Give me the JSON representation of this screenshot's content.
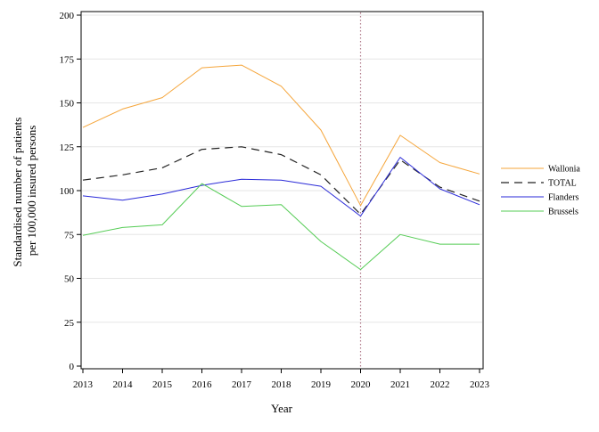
{
  "chart_data": {
    "type": "line",
    "xlabel": "Year",
    "ylabel": [
      "Standardised number of patients",
      "per 100,000 insured persons"
    ],
    "x": [
      2013,
      2014,
      2015,
      2016,
      2017,
      2018,
      2019,
      2020,
      2021,
      2022,
      2023
    ],
    "xlim": [
      2013,
      2023
    ],
    "ylim": [
      0,
      200
    ],
    "yticks": [
      0,
      25,
      50,
      75,
      100,
      125,
      150,
      175,
      200
    ],
    "grid": "horizontal",
    "reference_line_x": 2020,
    "legend_position": "right",
    "series": [
      {
        "name": "Wallonia",
        "color": "#f5a53a",
        "dash": "solid",
        "values": [
          136,
          146.5,
          153,
          170,
          171.5,
          159.5,
          134.5,
          91.5,
          131.5,
          116,
          109.5
        ]
      },
      {
        "name": "TOTAL",
        "color": "#222222",
        "dash": "dashed",
        "values": [
          106,
          109,
          113,
          123.5,
          125,
          120.5,
          109,
          86.5,
          117.5,
          102,
          94
        ]
      },
      {
        "name": "Flanders",
        "color": "#2a2ad8",
        "dash": "solid",
        "values": [
          97,
          94.5,
          98,
          103,
          106.5,
          106,
          102.5,
          85.5,
          119,
          101,
          92
        ]
      },
      {
        "name": "Brussels",
        "color": "#55cc55",
        "dash": "solid",
        "values": [
          74.5,
          79,
          80.5,
          104,
          91,
          92,
          71,
          55,
          75,
          69.5,
          69.5
        ]
      }
    ]
  }
}
